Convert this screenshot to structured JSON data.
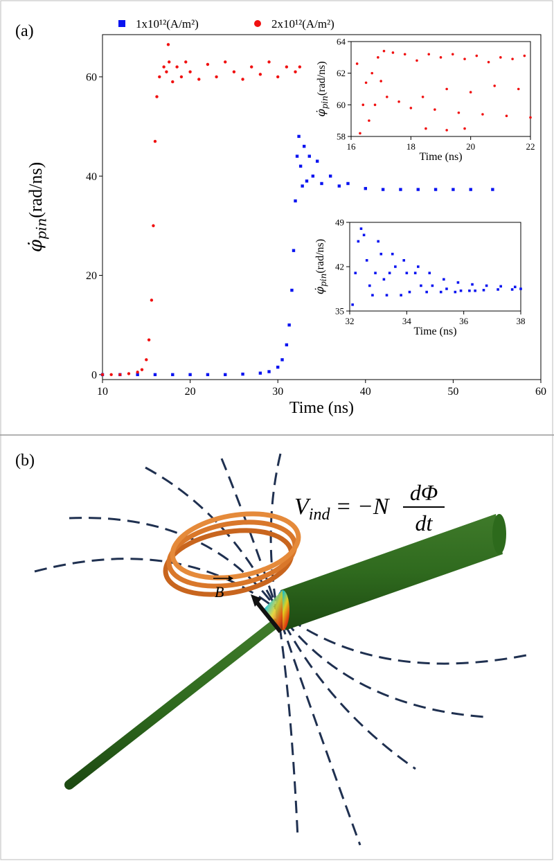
{
  "panel_labels": [
    "(a)",
    "(b)"
  ],
  "chart_data": [
    {
      "type": "scatter",
      "xlabel": "Time (ns)",
      "ylabel_symbol": "φ̇",
      "ylabel_sub": "pin",
      "ylabel_unit": "(rad/ns)",
      "xlim": [
        10,
        60
      ],
      "ylim": [
        -1,
        68.5
      ],
      "xticks": [
        10,
        20,
        30,
        40,
        50,
        60
      ],
      "yticks": [
        0,
        20,
        40,
        60
      ],
      "legend": "top",
      "series": [
        {
          "name": "1x10¹²(A/m²)",
          "color": "#0a14f0",
          "marker": "square",
          "x": [
            10,
            12,
            14,
            16,
            18,
            20,
            22,
            24,
            26,
            28,
            29,
            30,
            30.5,
            31,
            31.3,
            31.6,
            31.8,
            32,
            32.2,
            32.4,
            32.6,
            32.8,
            33,
            33.3,
            33.6,
            34,
            34.5,
            35,
            36,
            37,
            38,
            40,
            42,
            44,
            46,
            48,
            50,
            52,
            54.5
          ],
          "values": [
            0,
            0,
            0,
            0,
            0,
            0,
            0,
            0,
            0.1,
            0.3,
            0.6,
            1.5,
            3,
            6,
            10,
            17,
            25,
            35,
            44,
            48,
            42,
            38,
            46,
            39,
            44,
            40,
            43,
            38.5,
            40,
            38,
            38.5,
            37.5,
            37.3,
            37.3,
            37.3,
            37.3,
            37.3,
            37.3,
            37.3
          ]
        },
        {
          "name": "2x10¹²(A/m²)",
          "color": "#f01010",
          "marker": "circle",
          "x": [
            10,
            11,
            12,
            13,
            14,
            14.5,
            15,
            15.3,
            15.6,
            15.8,
            16,
            16.2,
            16.5,
            17,
            17.3,
            17.6,
            18,
            18.5,
            19,
            19.5,
            20,
            21,
            22,
            23,
            24,
            25,
            26,
            27,
            28,
            29,
            30,
            31,
            32,
            32.5,
            17.5
          ],
          "values": [
            0,
            0,
            0,
            0.2,
            0.5,
            1,
            3,
            7,
            15,
            30,
            47,
            56,
            60,
            62,
            61,
            63,
            59,
            62,
            60,
            63,
            61,
            59.5,
            62.5,
            60,
            63,
            61,
            59.5,
            62,
            60.5,
            63,
            60,
            62,
            61,
            62,
            66.5
          ]
        }
      ]
    },
    {
      "type": "scatter",
      "xlabel": "Time (ns)",
      "ylabel_symbol": "φ̇",
      "ylabel_sub": "pin",
      "ylabel_unit": "(rad/ns)",
      "xlim": [
        16,
        22
      ],
      "ylim": [
        58,
        64
      ],
      "xticks": [
        16,
        18,
        20,
        22
      ],
      "yticks": [
        58,
        60,
        62,
        64
      ],
      "series": [
        {
          "color": "#f01010",
          "marker": "circle",
          "x": [
            16.3,
            16.4,
            16.5,
            16.6,
            16.7,
            16.8,
            16.9,
            17,
            17.1,
            17.2,
            17.4,
            17.6,
            17.8,
            18,
            18.2,
            18.4,
            18.6,
            18.8,
            19,
            19.2,
            19.4,
            19.6,
            19.8,
            20,
            20.2,
            20.4,
            20.6,
            20.8,
            21,
            21.2,
            21.4,
            21.6,
            21.8,
            22,
            16.2,
            18.5,
            19.2,
            19.8
          ],
          "values": [
            58.2,
            60,
            61.4,
            59,
            62,
            60,
            63,
            61.5,
            63.4,
            60.5,
            63.3,
            60.2,
            63.2,
            59.8,
            62.8,
            60.5,
            63.2,
            59.7,
            63,
            61,
            63.2,
            59.5,
            62.9,
            60.8,
            63.1,
            59.4,
            62.7,
            61.2,
            63,
            59.3,
            62.9,
            61,
            63.1,
            59.2,
            62.6,
            58.5,
            58.4,
            58.5
          ]
        }
      ]
    },
    {
      "type": "scatter",
      "xlabel": "Time (ns)",
      "ylabel_symbol": "φ̇",
      "ylabel_sub": "pin",
      "ylabel_unit": "(rad/ns)",
      "xlim": [
        32,
        38
      ],
      "ylim": [
        35,
        49
      ],
      "xticks": [
        32,
        34,
        36,
        38
      ],
      "yticks": [
        35,
        42,
        49
      ],
      "series": [
        {
          "color": "#0a14f0",
          "marker": "square",
          "x": [
            32.1,
            32.2,
            32.3,
            32.4,
            32.5,
            32.6,
            32.7,
            32.8,
            32.9,
            33,
            33.1,
            33.2,
            33.3,
            33.4,
            33.5,
            33.6,
            33.8,
            33.9,
            34,
            34.1,
            34.3,
            34.4,
            34.5,
            34.7,
            34.8,
            34.9,
            35.2,
            35.3,
            35.4,
            35.7,
            35.8,
            35.9,
            36.2,
            36.3,
            36.4,
            36.7,
            36.8,
            37.2,
            37.3,
            37.7,
            37.8,
            38
          ],
          "values": [
            36,
            41,
            46,
            48,
            47,
            43,
            39,
            37.5,
            41,
            46,
            44,
            40,
            37.5,
            41,
            44,
            42,
            37.5,
            43,
            41,
            38,
            41,
            42,
            39,
            38,
            41,
            39,
            38,
            40,
            38.5,
            38,
            39.5,
            38.2,
            38.2,
            39.2,
            38.2,
            38.3,
            39,
            38.4,
            38.9,
            38.4,
            38.8,
            38.5
          ]
        }
      ]
    }
  ],
  "diagram": {
    "equation": {
      "lhs": "V",
      "lhs_sub": "ind",
      "rhs": "= −N",
      "numerator": "dΦ",
      "denominator": "dt"
    },
    "vector_label": "B"
  }
}
